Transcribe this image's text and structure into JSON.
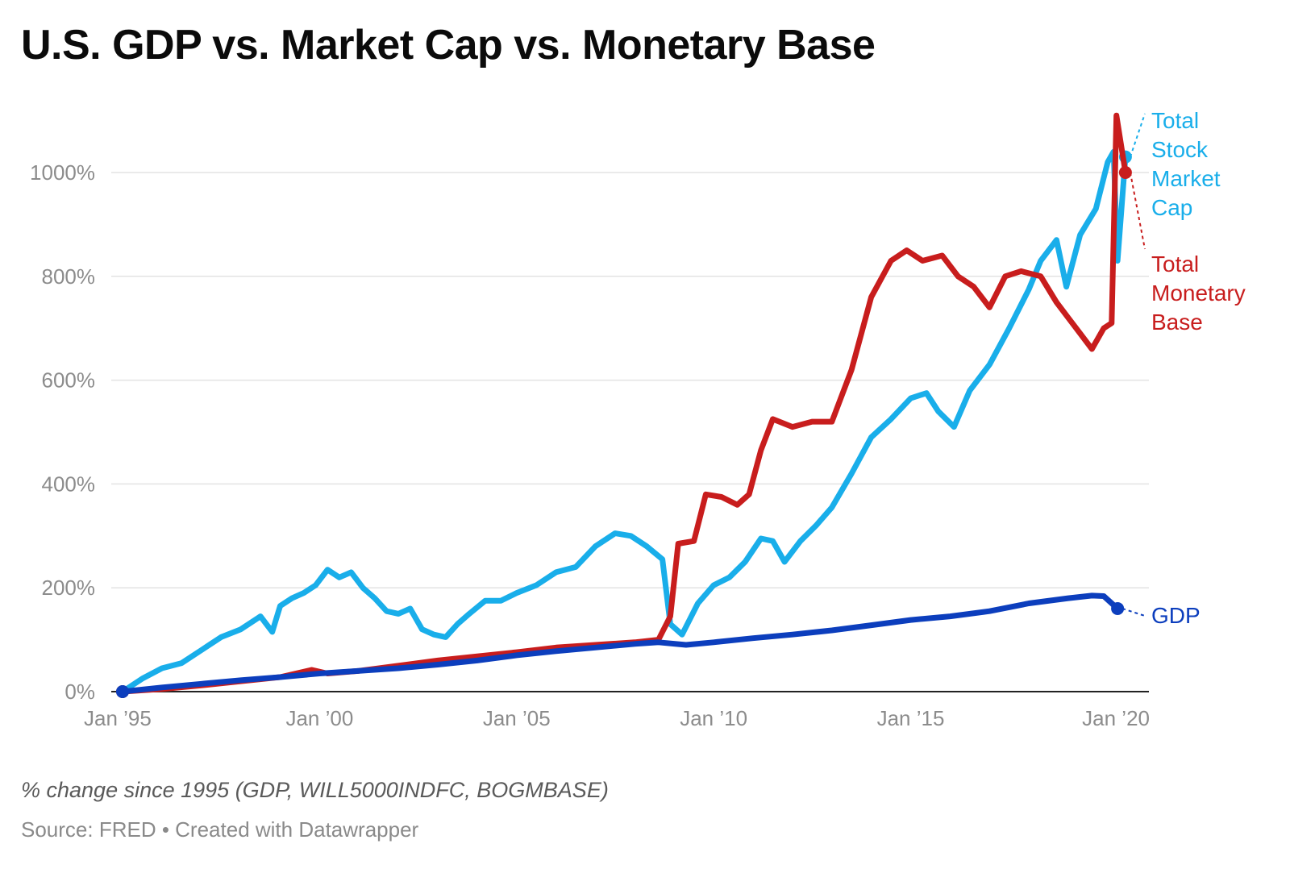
{
  "header": {
    "title": "U.S. GDP vs. Market Cap vs. Monetary Base"
  },
  "footer": {
    "notes": "% change since 1995 (GDP, WILL5000INDFC, BOGMBASE)",
    "source": "Source: FRED • Created with Datawrapper"
  },
  "colors": {
    "market_cap": "#19aeea",
    "monetary_base": "#c81d1d",
    "gdp": "#0c3ebd",
    "grid": "#e3e3e3",
    "axis": "#222222"
  },
  "chart_data": {
    "type": "line",
    "title": "U.S. GDP vs. Market Cap vs. Monetary Base",
    "xlabel": "",
    "ylabel": "",
    "xlim": [
      1995.0,
      2020.8
    ],
    "ylim": [
      0,
      1100
    ],
    "y_ticks": [
      0,
      200,
      400,
      600,
      800,
      1000
    ],
    "y_tick_labels": [
      "0%",
      "200%",
      "400%",
      "600%",
      "800%",
      "1000%"
    ],
    "x_ticks": [
      1995,
      2000,
      2005,
      2010,
      2015,
      2020
    ],
    "x_tick_labels": [
      "Jan ’95",
      "Jan ’00",
      "Jan ’05",
      "Jan ’10",
      "Jan ’15",
      "Jan ’20"
    ],
    "grid": true,
    "legend": "inline labels at right end of lines",
    "series": [
      {
        "name": "Total Stock Market Cap",
        "label_lines": [
          "Total",
          "Stock",
          "Market",
          "Cap"
        ],
        "color": "#19aeea",
        "points": [
          [
            1995.0,
            0
          ],
          [
            1995.5,
            25
          ],
          [
            1996.0,
            45
          ],
          [
            1996.5,
            55
          ],
          [
            1997.0,
            80
          ],
          [
            1997.5,
            105
          ],
          [
            1998.0,
            120
          ],
          [
            1998.5,
            145
          ],
          [
            1998.8,
            115
          ],
          [
            1999.0,
            165
          ],
          [
            1999.3,
            180
          ],
          [
            1999.6,
            190
          ],
          [
            1999.9,
            205
          ],
          [
            2000.2,
            235
          ],
          [
            2000.5,
            220
          ],
          [
            2000.8,
            230
          ],
          [
            2001.1,
            200
          ],
          [
            2001.4,
            180
          ],
          [
            2001.7,
            155
          ],
          [
            2002.0,
            150
          ],
          [
            2002.3,
            160
          ],
          [
            2002.6,
            120
          ],
          [
            2002.9,
            110
          ],
          [
            2003.2,
            105
          ],
          [
            2003.5,
            130
          ],
          [
            2003.8,
            150
          ],
          [
            2004.2,
            175
          ],
          [
            2004.6,
            175
          ],
          [
            2005.0,
            190
          ],
          [
            2005.5,
            205
          ],
          [
            2006.0,
            230
          ],
          [
            2006.5,
            240
          ],
          [
            2007.0,
            280
          ],
          [
            2007.5,
            305
          ],
          [
            2007.9,
            300
          ],
          [
            2008.3,
            280
          ],
          [
            2008.7,
            255
          ],
          [
            2008.9,
            130
          ],
          [
            2009.2,
            110
          ],
          [
            2009.6,
            170
          ],
          [
            2010.0,
            205
          ],
          [
            2010.4,
            220
          ],
          [
            2010.8,
            250
          ],
          [
            2011.2,
            295
          ],
          [
            2011.5,
            290
          ],
          [
            2011.8,
            250
          ],
          [
            2012.2,
            290
          ],
          [
            2012.6,
            320
          ],
          [
            2013.0,
            355
          ],
          [
            2013.5,
            420
          ],
          [
            2014.0,
            490
          ],
          [
            2014.5,
            525
          ],
          [
            2015.0,
            565
          ],
          [
            2015.4,
            575
          ],
          [
            2015.7,
            540
          ],
          [
            2016.1,
            510
          ],
          [
            2016.5,
            580
          ],
          [
            2017.0,
            630
          ],
          [
            2017.5,
            700
          ],
          [
            2018.0,
            775
          ],
          [
            2018.3,
            830
          ],
          [
            2018.7,
            870
          ],
          [
            2018.95,
            780
          ],
          [
            2019.3,
            880
          ],
          [
            2019.7,
            930
          ],
          [
            2020.0,
            1020
          ],
          [
            2020.15,
            1040
          ],
          [
            2020.25,
            830
          ],
          [
            2020.45,
            1030
          ]
        ]
      },
      {
        "name": "Total Monetary Base",
        "label_lines": [
          "Total",
          "Monetary",
          "Base"
        ],
        "color": "#c81d1d",
        "points": [
          [
            1995.0,
            0
          ],
          [
            1996.0,
            5
          ],
          [
            1997.0,
            12
          ],
          [
            1998.0,
            20
          ],
          [
            1999.0,
            28
          ],
          [
            1999.8,
            42
          ],
          [
            2000.2,
            35
          ],
          [
            2001.0,
            40
          ],
          [
            2002.0,
            50
          ],
          [
            2003.0,
            60
          ],
          [
            2004.0,
            68
          ],
          [
            2005.0,
            76
          ],
          [
            2006.0,
            85
          ],
          [
            2007.0,
            90
          ],
          [
            2008.0,
            95
          ],
          [
            2008.6,
            100
          ],
          [
            2008.9,
            145
          ],
          [
            2009.1,
            285
          ],
          [
            2009.5,
            290
          ],
          [
            2009.8,
            380
          ],
          [
            2010.2,
            375
          ],
          [
            2010.6,
            360
          ],
          [
            2010.9,
            380
          ],
          [
            2011.2,
            465
          ],
          [
            2011.5,
            525
          ],
          [
            2012.0,
            510
          ],
          [
            2012.5,
            520
          ],
          [
            2013.0,
            520
          ],
          [
            2013.5,
            620
          ],
          [
            2014.0,
            760
          ],
          [
            2014.5,
            830
          ],
          [
            2014.9,
            850
          ],
          [
            2015.3,
            830
          ],
          [
            2015.8,
            840
          ],
          [
            2016.2,
            800
          ],
          [
            2016.6,
            780
          ],
          [
            2017.0,
            740
          ],
          [
            2017.4,
            800
          ],
          [
            2017.8,
            810
          ],
          [
            2018.3,
            800
          ],
          [
            2018.7,
            750
          ],
          [
            2019.0,
            720
          ],
          [
            2019.3,
            690
          ],
          [
            2019.6,
            660
          ],
          [
            2019.9,
            700
          ],
          [
            2020.1,
            710
          ],
          [
            2020.22,
            1110
          ],
          [
            2020.45,
            1000
          ]
        ]
      },
      {
        "name": "GDP",
        "label_lines": [
          "GDP"
        ],
        "color": "#0c3ebd",
        "points": [
          [
            1995.0,
            0
          ],
          [
            1996.0,
            8
          ],
          [
            1997.0,
            15
          ],
          [
            1998.0,
            22
          ],
          [
            1999.0,
            28
          ],
          [
            2000.0,
            35
          ],
          [
            2001.0,
            40
          ],
          [
            2002.0,
            45
          ],
          [
            2003.0,
            52
          ],
          [
            2004.0,
            60
          ],
          [
            2005.0,
            70
          ],
          [
            2006.0,
            78
          ],
          [
            2007.0,
            85
          ],
          [
            2008.0,
            92
          ],
          [
            2008.6,
            95
          ],
          [
            2009.3,
            90
          ],
          [
            2010.0,
            95
          ],
          [
            2011.0,
            103
          ],
          [
            2012.0,
            110
          ],
          [
            2013.0,
            118
          ],
          [
            2014.0,
            128
          ],
          [
            2015.0,
            138
          ],
          [
            2016.0,
            145
          ],
          [
            2017.0,
            155
          ],
          [
            2018.0,
            170
          ],
          [
            2019.0,
            180
          ],
          [
            2019.6,
            185
          ],
          [
            2019.9,
            184
          ],
          [
            2020.25,
            160
          ]
        ]
      }
    ]
  }
}
